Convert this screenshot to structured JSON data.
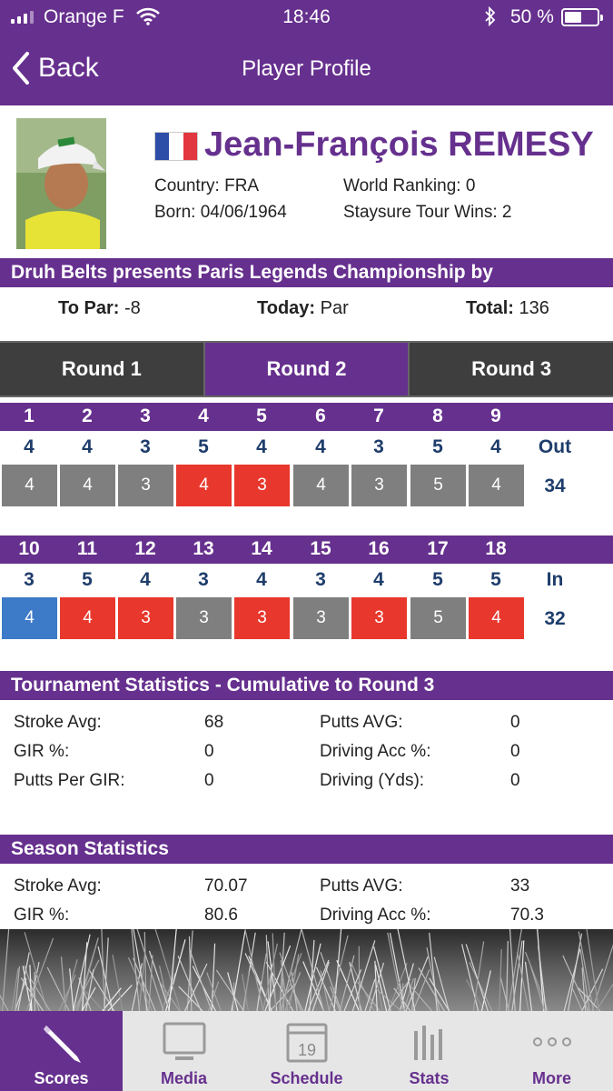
{
  "status_bar": {
    "carrier": "Orange F",
    "time": "18:46",
    "battery": "50 %"
  },
  "nav": {
    "back_label": "Back",
    "title": "Player Profile"
  },
  "player": {
    "name": "Jean-François REMESY",
    "country": "Country: FRA",
    "born": "Born: 04/06/1964",
    "ranking": "World Ranking: 0",
    "wins": "Staysure Tour Wins: 2"
  },
  "event": {
    "title": "Druh Belts presents Paris Legends Championship by",
    "to_par_label": "To Par:",
    "to_par": "-8",
    "today_label": "Today:",
    "today": "Par",
    "total_label": "Total:",
    "total": "136"
  },
  "rounds": [
    "Round 1",
    "Round 2",
    "Round 3"
  ],
  "front_nine": {
    "holes": [
      "1",
      "2",
      "3",
      "4",
      "5",
      "6",
      "7",
      "8",
      "9"
    ],
    "pars": [
      "4",
      "4",
      "3",
      "5",
      "4",
      "4",
      "3",
      "5",
      "4"
    ],
    "scores": [
      "4",
      "4",
      "3",
      "4",
      "3",
      "4",
      "3",
      "5",
      "4"
    ],
    "score_colors": [
      "#7f7f7f",
      "#7f7f7f",
      "#7f7f7f",
      "#e8372c",
      "#e8372c",
      "#7f7f7f",
      "#7f7f7f",
      "#7f7f7f",
      "#7f7f7f"
    ],
    "total_label": "Out",
    "total": "34"
  },
  "back_nine": {
    "holes": [
      "10",
      "11",
      "12",
      "13",
      "14",
      "15",
      "16",
      "17",
      "18"
    ],
    "pars": [
      "3",
      "5",
      "4",
      "3",
      "4",
      "3",
      "4",
      "5",
      "5"
    ],
    "scores": [
      "4",
      "4",
      "3",
      "3",
      "3",
      "3",
      "3",
      "5",
      "4"
    ],
    "score_colors": [
      "#3d7ac8",
      "#e8372c",
      "#e8372c",
      "#7f7f7f",
      "#e8372c",
      "#7f7f7f",
      "#e8372c",
      "#7f7f7f",
      "#e8372c"
    ],
    "total_label": "In",
    "total": "32"
  },
  "tournament_stats": {
    "title": "Tournament Statistics - Cumulative to Round 3",
    "rows": [
      {
        "l1": "Stroke Avg:",
        "v1": "68",
        "l2": "Putts AVG:",
        "v2": "0"
      },
      {
        "l1": "GIR %:",
        "v1": "0",
        "l2": "Driving Acc %:",
        "v2": "0"
      },
      {
        "l1": "Putts Per GIR:",
        "v1": "0",
        "l2": "Driving (Yds):",
        "v2": "0"
      }
    ]
  },
  "season_stats": {
    "title": "Season Statistics",
    "rows": [
      {
        "l1": "Stroke Avg:",
        "v1": "70.07",
        "l2": "Putts AVG:",
        "v2": "33"
      },
      {
        "l1": "GIR %:",
        "v1": "80.6",
        "l2": "Driving Acc %:",
        "v2": "70.3"
      }
    ]
  },
  "tabbar": [
    {
      "label": "Scores",
      "icon": "pencil-icon"
    },
    {
      "label": "Media",
      "icon": "monitor-icon"
    },
    {
      "label": "Schedule",
      "icon": "calendar-icon",
      "calendar_day": "19"
    },
    {
      "label": "Stats",
      "icon": "bar-chart-icon"
    },
    {
      "label": "More",
      "icon": "more-dots-icon"
    }
  ],
  "colors": {
    "brand": "#66308e",
    "under_par": "#e8372c",
    "over_par": "#3d7ac8",
    "par": "#7f7f7f",
    "number": "#1e3d6b"
  }
}
